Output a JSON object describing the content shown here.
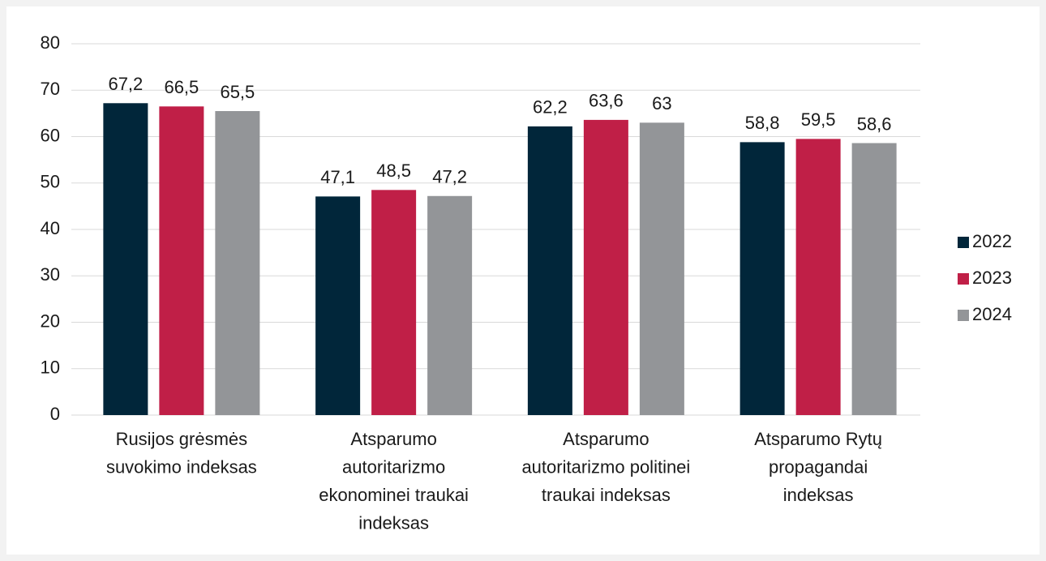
{
  "chart_data": {
    "type": "bar",
    "categories": [
      [
        "Rusijos grėsmės",
        "suvokimo indeksas"
      ],
      [
        "Atsparumo",
        "autoritarizmo",
        "ekonominei traukai",
        "indeksas"
      ],
      [
        "Atsparumo",
        "autoritarizmo politinei",
        "traukai indeksas"
      ],
      [
        "Atsparumo Rytų",
        "propagandai",
        "indeksas"
      ]
    ],
    "series": [
      {
        "name": "2022",
        "color": "#01263a",
        "values": [
          67.2,
          47.1,
          62.2,
          58.8
        ],
        "value_labels": [
          "67,2",
          "47,1",
          "62,2",
          "58,8"
        ]
      },
      {
        "name": "2023",
        "color": "#c01f47",
        "values": [
          66.5,
          48.5,
          63.6,
          59.5
        ],
        "value_labels": [
          "66,5",
          "48,5",
          "63,6",
          "59,5"
        ]
      },
      {
        "name": "2024",
        "color": "#939598",
        "values": [
          65.5,
          47.2,
          63,
          58.6
        ],
        "value_labels": [
          "65,5",
          "47,2",
          "63",
          "58,6"
        ]
      }
    ],
    "ylim": [
      0,
      80
    ],
    "yticks": [
      0,
      10,
      20,
      30,
      40,
      50,
      60,
      70,
      80
    ],
    "grid": true,
    "legend": "right"
  }
}
